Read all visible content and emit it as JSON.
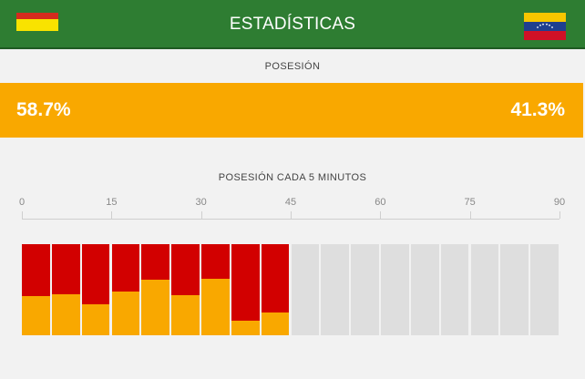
{
  "header": {
    "title": "ESTADÍSTICAS",
    "home_flag": {
      "icon": "bolivia-flag-icon",
      "colors": [
        "#d52b1e",
        "#f9e300",
        "#007934"
      ]
    },
    "away_flag": {
      "icon": "venezuela-flag-icon",
      "colors": [
        "#f7c600",
        "#1f3f8f",
        "#cf1126"
      ]
    }
  },
  "possession": {
    "label": "POSESIÓN",
    "home": "58.7%",
    "away": "41.3%"
  },
  "timeline": {
    "label": "POSESIÓN CADA 5 MINUTOS",
    "ticks": [
      "0",
      "15",
      "30",
      "45",
      "60",
      "75",
      "90"
    ],
    "home_color": "#f9a800",
    "away_color": "#d20000",
    "empty_color": "#dedede"
  },
  "chart_data": {
    "type": "bar",
    "categories": [
      "0-5",
      "5-10",
      "10-15",
      "15-20",
      "20-25",
      "25-30",
      "30-35",
      "35-40",
      "40-45",
      "45-50",
      "50-55",
      "55-60",
      "60-65",
      "65-70",
      "70-75",
      "75-80",
      "80-85",
      "85-90"
    ],
    "series": [
      {
        "values": [
          43,
          45,
          34,
          48,
          61,
          44,
          62,
          16,
          25,
          null,
          null,
          null,
          null,
          null,
          null,
          null,
          null,
          null
        ]
      },
      {
        "values": [
          57,
          55,
          66,
          52,
          39,
          56,
          38,
          84,
          75,
          null,
          null,
          null,
          null,
          null,
          null,
          null,
          null,
          null
        ]
      }
    ],
    "xlim": [
      0,
      90
    ],
    "ylim": [
      0,
      100
    ]
  }
}
